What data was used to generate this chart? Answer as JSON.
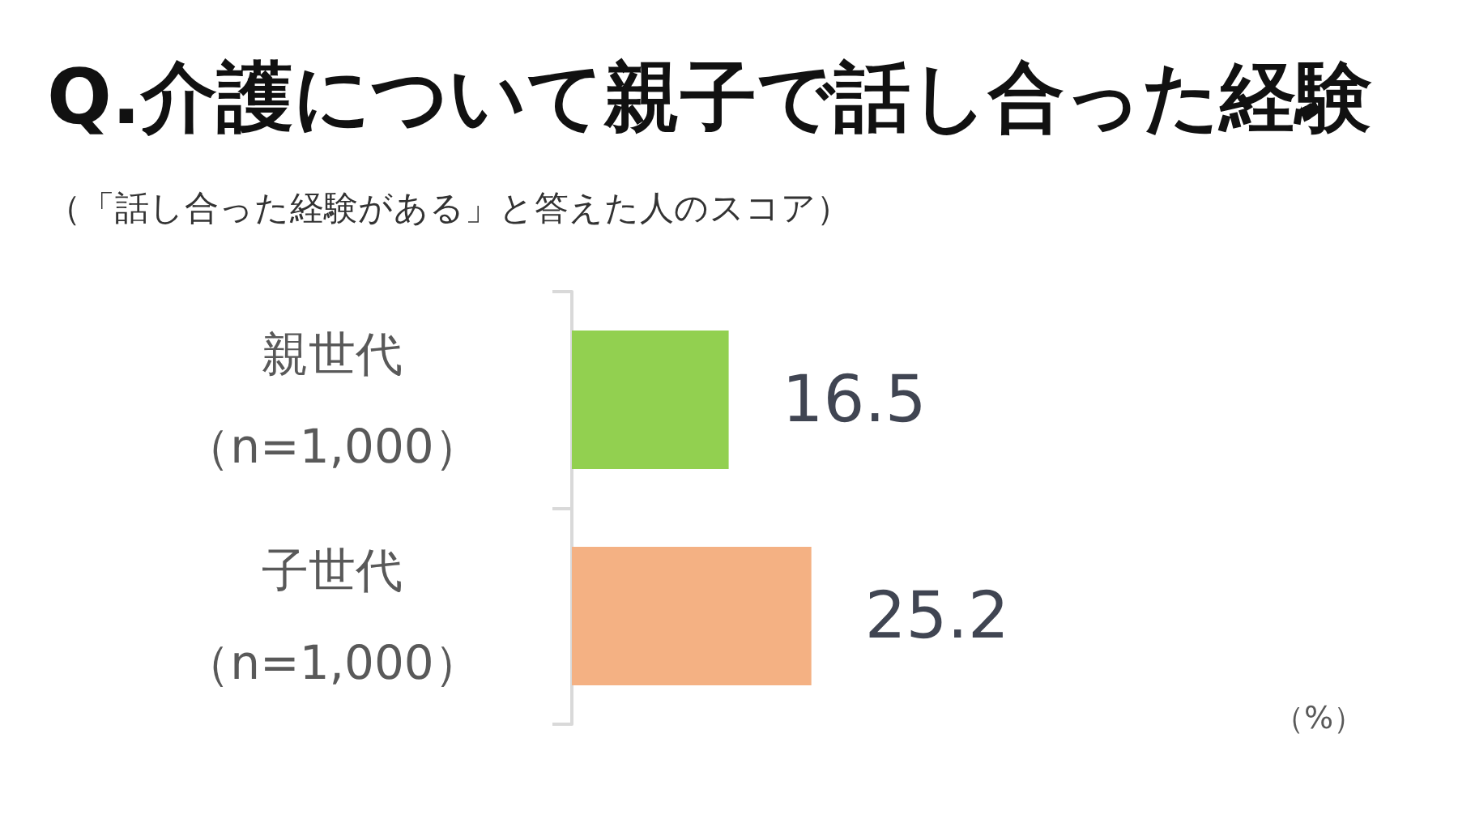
{
  "chart_data": {
    "type": "bar",
    "orientation": "horizontal",
    "title": "Q.介護について親子で話し合った経験",
    "subtitle": "（「話し合った経験がある」と答えた人のスコア）",
    "categories": [
      "親世代（n=1,000）",
      "子世代（n=1,000）"
    ],
    "values": [
      16.5,
      25.2
    ],
    "colors": [
      "#92d050",
      "#f4b183"
    ],
    "data_labels": true,
    "tick_labels": "y",
    "annotations": [
      "（%）"
    ]
  }
}
